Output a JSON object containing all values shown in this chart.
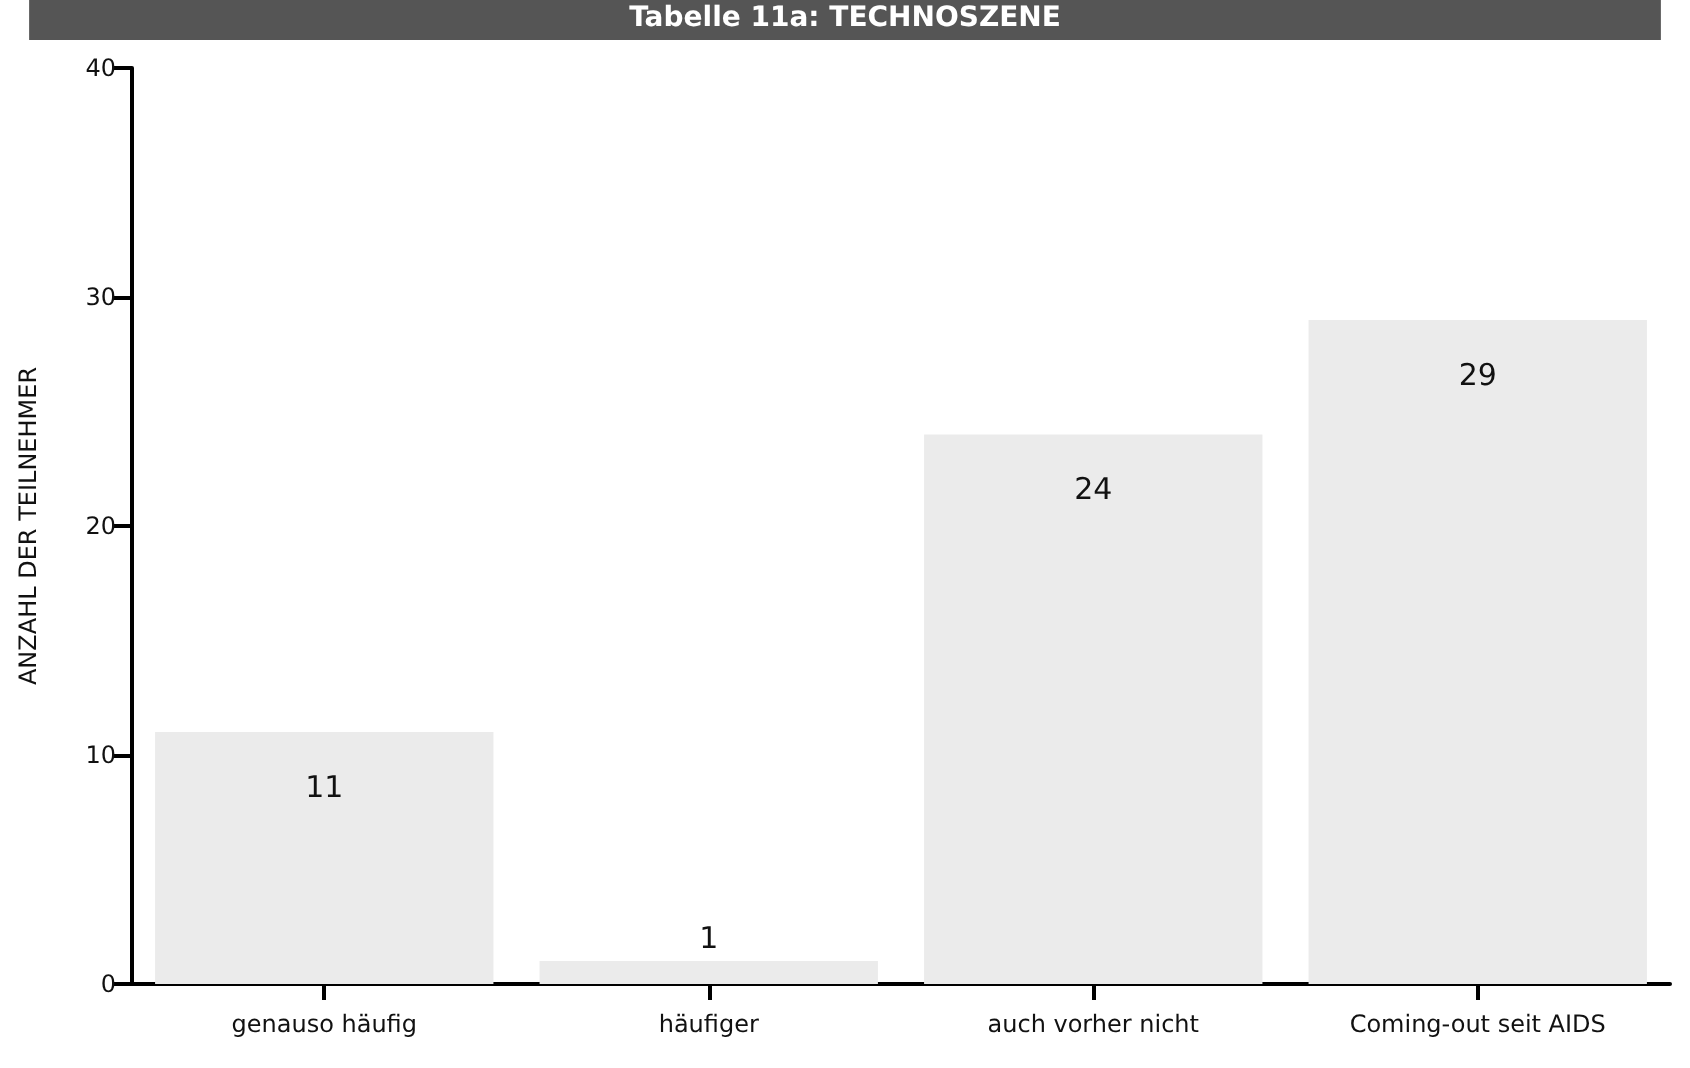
{
  "chart_data": {
    "type": "bar",
    "title": "Tabelle 11a: TECHNOSZENE",
    "ylabel": "ANZAHL DER TEILNEHMER",
    "categories": [
      "genauso häufig",
      "häufiger",
      "auch vorher nicht",
      "Coming-out seit AIDS"
    ],
    "values": [
      11,
      1,
      24,
      29
    ],
    "color": "#ebebeb",
    "ylim": [
      0,
      40
    ],
    "yticks": [
      0,
      10,
      20,
      30,
      40
    ],
    "grid": false,
    "data_labels": true
  }
}
